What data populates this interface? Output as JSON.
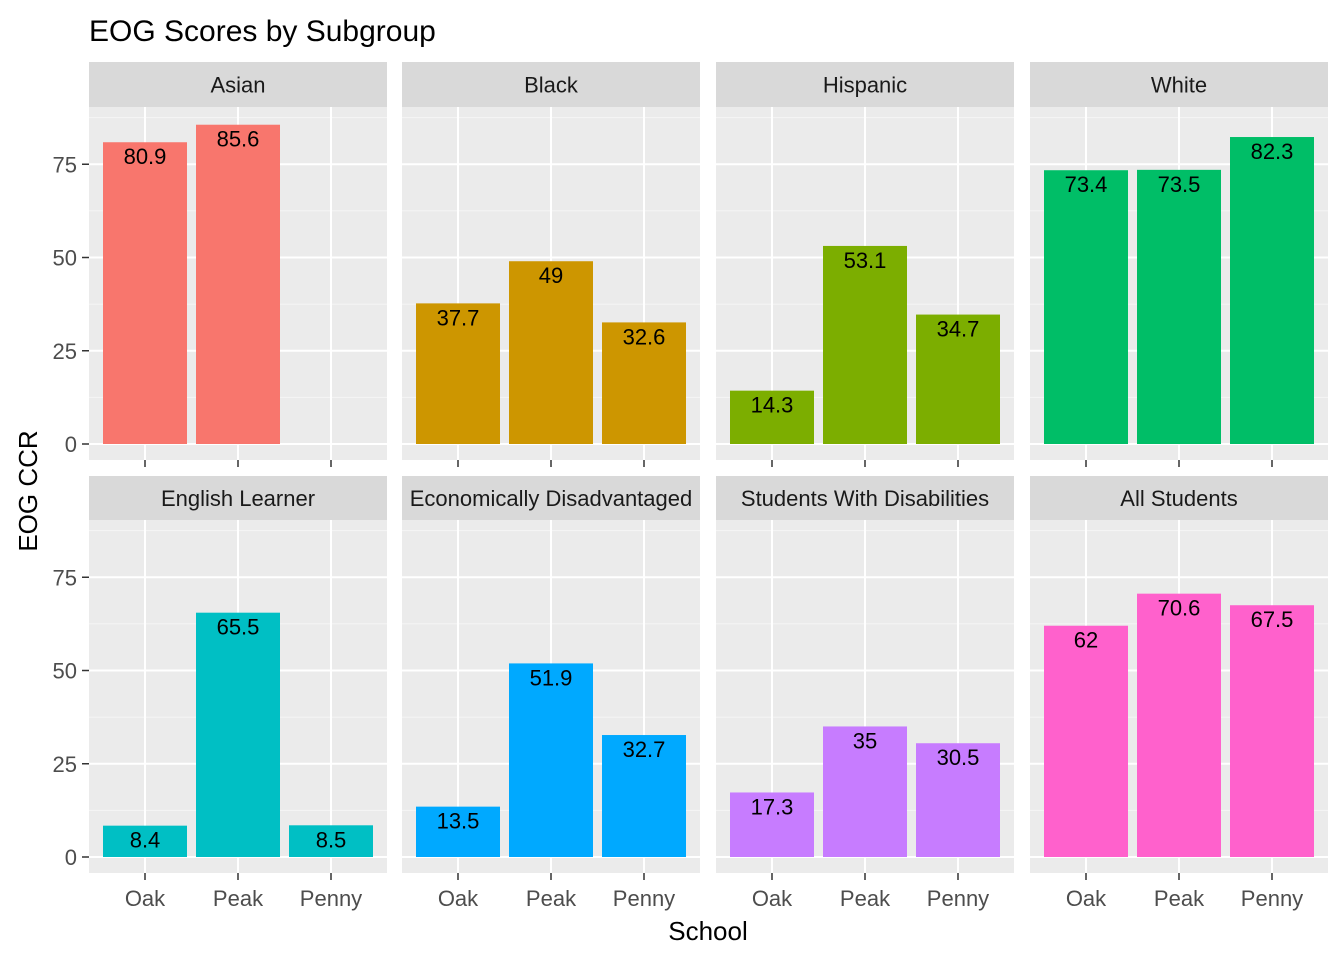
{
  "chart_data": {
    "type": "bar",
    "title": "EOG Scores by Subgroup",
    "xlabel": "School",
    "ylabel": "EOG CCR",
    "ylim": [
      0,
      92
    ],
    "yticks": [
      0,
      25,
      50,
      75
    ],
    "categories": [
      "Oak",
      "Peak",
      "Penny"
    ],
    "grid": true,
    "legend": "none",
    "panels": [
      {
        "name": "Asian",
        "color": "#F8766D",
        "values": [
          80.9,
          85.6,
          null
        ],
        "labels": [
          "80.9",
          "85.6",
          ""
        ]
      },
      {
        "name": "Black",
        "color": "#CD9600",
        "values": [
          37.7,
          49,
          32.6
        ],
        "labels": [
          "37.7",
          "49",
          "32.6"
        ]
      },
      {
        "name": "Hispanic",
        "color": "#7CAE00",
        "values": [
          14.3,
          53.1,
          34.7
        ],
        "labels": [
          "14.3",
          "53.1",
          "34.7"
        ]
      },
      {
        "name": "White",
        "color": "#00BE67",
        "values": [
          73.4,
          73.5,
          82.3
        ],
        "labels": [
          "73.4",
          "73.5",
          "82.3"
        ]
      },
      {
        "name": "English Learner",
        "color": "#00BFC4",
        "values": [
          8.4,
          65.5,
          8.5
        ],
        "labels": [
          "8.4",
          "65.5",
          "8.5"
        ]
      },
      {
        "name": "Economically Disadvantaged",
        "color": "#00A9FF",
        "values": [
          13.5,
          51.9,
          32.7
        ],
        "labels": [
          "13.5",
          "51.9",
          "32.7"
        ]
      },
      {
        "name": "Students With Disabilities",
        "color": "#C77CFF",
        "values": [
          17.3,
          35,
          30.5
        ],
        "labels": [
          "17.3",
          "35",
          "30.5"
        ]
      },
      {
        "name": "All Students",
        "color": "#FF61CC",
        "values": [
          62,
          70.6,
          67.5
        ],
        "labels": [
          "62",
          "70.6",
          "67.5"
        ]
      }
    ]
  }
}
